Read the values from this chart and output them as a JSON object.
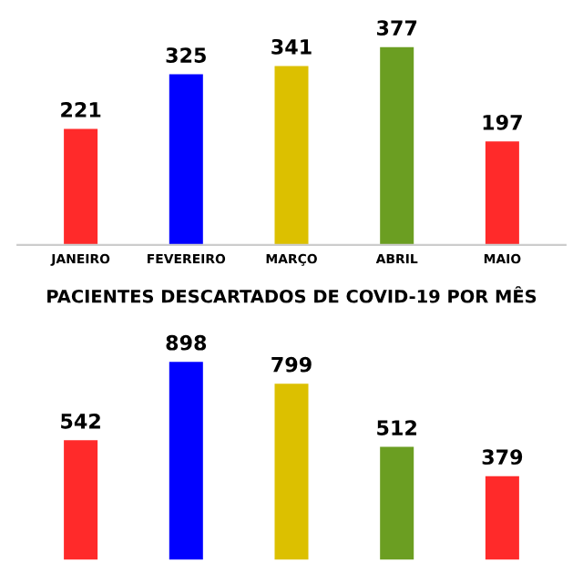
{
  "chart_data": [
    {
      "type": "bar",
      "categories": [
        "JANEIRO",
        "FEVEREIRO",
        "MARÇO",
        "ABRIL",
        "MAIO"
      ],
      "values": [
        221,
        325,
        341,
        377,
        197
      ],
      "colors": [
        "#ff2a2a",
        "#0000ff",
        "#dcc000",
        "#6b9e22",
        "#ff2a2a"
      ],
      "data_labels": true,
      "tick_labels": "x",
      "grid": false,
      "legend": false
    },
    {
      "type": "bar",
      "title": "PACIENTES DESCARTADOS DE COVID-19 POR MÊS",
      "categories": [
        null,
        null,
        null,
        null,
        null
      ],
      "values": [
        542,
        898,
        799,
        512,
        379
      ],
      "colors": [
        "#ff2a2a",
        "#0000ff",
        "#dcc000",
        "#6b9e22",
        "#ff2a2a"
      ],
      "data_labels": true,
      "tick_labels": false,
      "grid": false,
      "legend": false
    }
  ]
}
